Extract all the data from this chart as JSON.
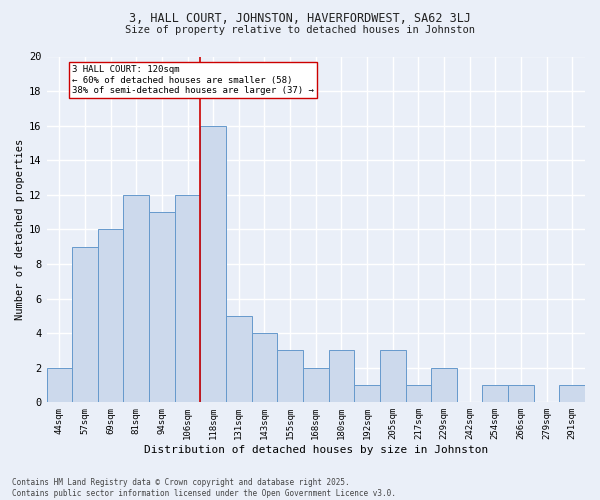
{
  "title1": "3, HALL COURT, JOHNSTON, HAVERFORDWEST, SA62 3LJ",
  "title2": "Size of property relative to detached houses in Johnston",
  "xlabel": "Distribution of detached houses by size in Johnston",
  "ylabel": "Number of detached properties",
  "categories": [
    "44sqm",
    "57sqm",
    "69sqm",
    "81sqm",
    "94sqm",
    "106sqm",
    "118sqm",
    "131sqm",
    "143sqm",
    "155sqm",
    "168sqm",
    "180sqm",
    "192sqm",
    "205sqm",
    "217sqm",
    "229sqm",
    "242sqm",
    "254sqm",
    "266sqm",
    "279sqm",
    "291sqm"
  ],
  "values": [
    2,
    9,
    10,
    12,
    11,
    12,
    16,
    5,
    4,
    3,
    2,
    3,
    1,
    3,
    1,
    2,
    0,
    1,
    1,
    0,
    1
  ],
  "bar_color": "#ccd9ec",
  "bar_edge_color": "#6699cc",
  "vline_color": "#cc0000",
  "vline_index": 6,
  "annotation_text": "3 HALL COURT: 120sqm\n← 60% of detached houses are smaller (58)\n38% of semi-detached houses are larger (37) →",
  "annotation_box_color": "#ffffff",
  "annotation_box_edge": "#cc0000",
  "ylim": [
    0,
    20
  ],
  "yticks": [
    0,
    2,
    4,
    6,
    8,
    10,
    12,
    14,
    16,
    18,
    20
  ],
  "background_color": "#eaeff8",
  "grid_color": "#ffffff",
  "footnote": "Contains HM Land Registry data © Crown copyright and database right 2025.\nContains public sector information licensed under the Open Government Licence v3.0."
}
